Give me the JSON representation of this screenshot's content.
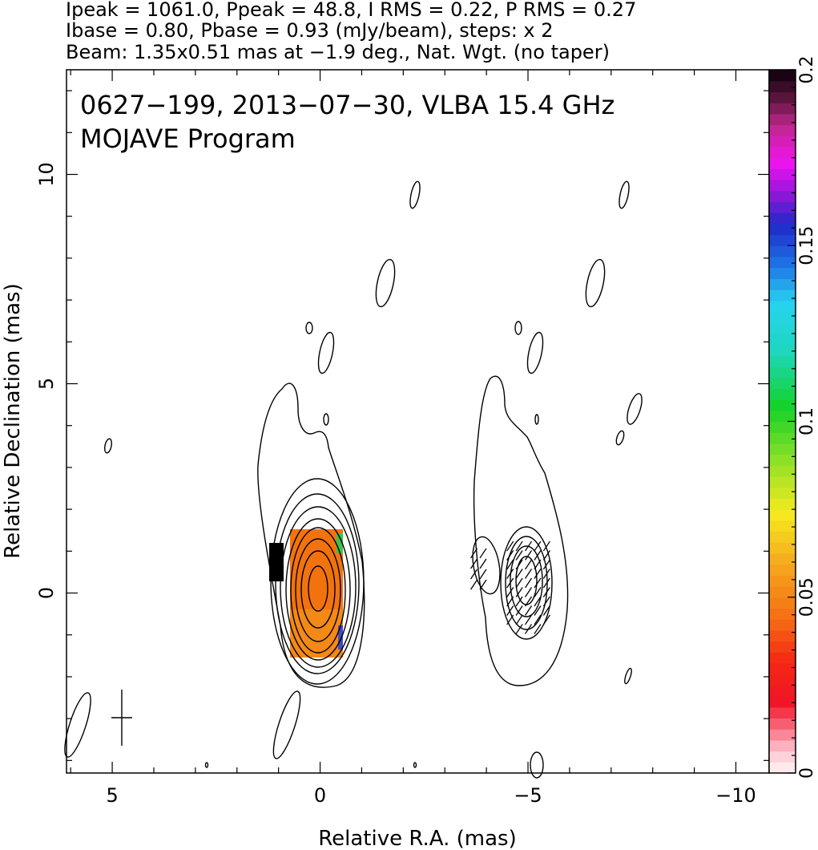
{
  "header": {
    "line1": "Ipeak = 1061.0, Ppeak = 48.8, I RMS = 0.22, P RMS = 0.27",
    "line2": "Ibase = 0.80, Pbase = 0.93 (mJy/beam), steps: x 2",
    "line3": "Beam: 1.35x0.51 mas at −1.9 deg., Nat. Wgt. (no taper)"
  },
  "chart_data": {
    "type": "contour",
    "title_line1": "0627−199, 2013−07−30, VLBA 15.4 GHz",
    "title_line2": "MOJAVE Program",
    "xlabel": "Relative R.A. (mas)",
    "ylabel": "Relative Declination (mas)",
    "xlim": [
      6.1,
      -10.8
    ],
    "ylim": [
      -4.3,
      12.5
    ],
    "x_ticks": [
      {
        "value": 5,
        "label": "5"
      },
      {
        "value": 0,
        "label": "0"
      },
      {
        "value": -5,
        "label": "−5"
      },
      {
        "value": -10,
        "label": "−10"
      }
    ],
    "y_ticks": [
      {
        "value": 0,
        "label": "0"
      },
      {
        "value": 5,
        "label": "5"
      },
      {
        "value": 10,
        "label": "10"
      }
    ],
    "colorbar": {
      "range": [
        0,
        0.2
      ],
      "ticks": [
        {
          "value": 0,
          "label": "0"
        },
        {
          "value": 0.05,
          "label": "0.05"
        },
        {
          "value": 0.1,
          "label": "0.1"
        },
        {
          "value": 0.15,
          "label": "0.15"
        },
        {
          "value": 0.2,
          "label": "0.2"
        }
      ]
    },
    "left_panel": {
      "center": [
        0.0,
        0.1
      ],
      "contour_levels": 9,
      "color_region": {
        "x_range": [
          -0.55,
          0.55
        ],
        "y_range": [
          -1.5,
          1.55
        ],
        "fraction_value": 0.055
      }
    },
    "right_panel": {
      "center": [
        -5.0,
        0.3
      ],
      "outer_contour": true,
      "vector_region": {
        "x_range": [
          -4.35,
          -5.65
        ],
        "y_range": [
          -1.3,
          1.3
        ]
      }
    },
    "beam": {
      "major_mas": 1.35,
      "minor_mas": 0.51,
      "pa_deg": -1.9
    }
  }
}
